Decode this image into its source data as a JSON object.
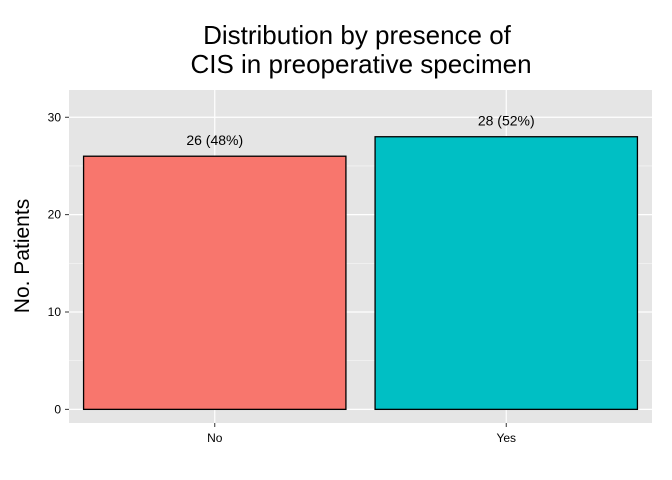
{
  "chart_data": {
    "type": "bar",
    "title": [
      "Distribution by presence of",
      "CIS in preoperative specimen"
    ],
    "xlabel": "",
    "ylabel": "No. Patients",
    "categories": [
      "No",
      "Yes"
    ],
    "values": [
      26,
      28
    ],
    "data_labels": [
      "26 (48%)",
      "28 (52%)"
    ],
    "colors": [
      "#F8766D",
      "#00BFC4"
    ],
    "bar_outline": "#000000",
    "panel_background": "#E5E5E5",
    "grid_color": "#FFFFFF",
    "ylim": [
      -1.4,
      32.8
    ],
    "yticks": [
      0,
      10,
      20,
      30
    ],
    "grid": true,
    "legend": "none"
  }
}
